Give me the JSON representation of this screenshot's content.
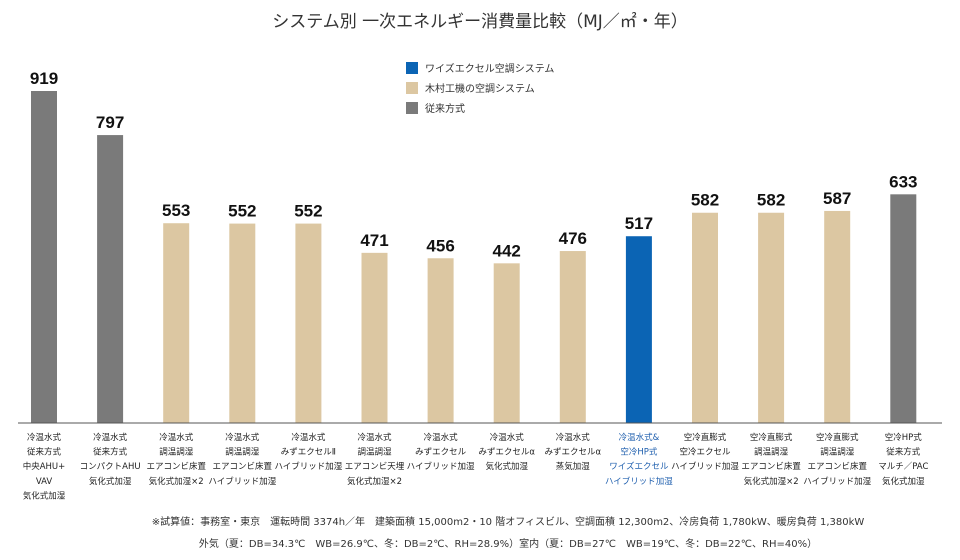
{
  "chart_data": {
    "type": "bar",
    "title": "システム別 一次エネルギー消費量比較（MJ／㎡・年）",
    "legend": {
      "placement": "top-center",
      "items": [
        {
          "name": "ワイズエクセル空調システム",
          "color": "#0b64b4"
        },
        {
          "name": "木村工機の空調システム",
          "color": "#dcc7a2"
        },
        {
          "name": "従来方式",
          "color": "#7a7a7a"
        }
      ]
    },
    "ylim": [
      0,
      1000
    ],
    "grid": false,
    "categories": [
      [
        "冷温水式",
        "従来方式",
        "中央AHU+",
        "VAV",
        "気化式加湿"
      ],
      [
        "冷温水式",
        "従来方式",
        "コンパクトAHU",
        "気化式加湿"
      ],
      [
        "冷温水式",
        "調温調湿",
        "エアコンビ床置",
        "気化式加湿×2"
      ],
      [
        "冷温水式",
        "調温調湿",
        "エアコンビ床置",
        "ハイブリッド加湿"
      ],
      [
        "冷温水式",
        "みずエクセルⅡ",
        "ハイブリッド加湿"
      ],
      [
        "冷温水式",
        "調温調湿",
        "エアコンビ天埋",
        "気化式加湿×2"
      ],
      [
        "冷温水式",
        "みずエクセル",
        "ハイブリッド加湿"
      ],
      [
        "冷温水式",
        "みずエクセルα",
        "気化式加湿"
      ],
      [
        "冷温水式",
        "みずエクセルα",
        "蒸気加湿"
      ],
      [
        "冷温水式&",
        "空冷HP式",
        "ワイズエクセル",
        "ハイブリッド加湿"
      ],
      [
        "空冷直膨式",
        "空冷エクセル",
        "ハイブリッド加湿"
      ],
      [
        "空冷直膨式",
        "調温調湿",
        "エアコンビ床置",
        "気化式加湿×2"
      ],
      [
        "空冷直膨式",
        "調温調湿",
        "エアコンビ床置",
        "ハイブリッド加湿"
      ],
      [
        "空冷HP式",
        "従来方式",
        "マルチ／PAC",
        "気化式加湿"
      ]
    ],
    "values": [
      919,
      797,
      553,
      552,
      552,
      471,
      456,
      442,
      476,
      517,
      582,
      582,
      587,
      633
    ],
    "series_of_bar": [
      "従来方式",
      "従来方式",
      "木村工機の空調システム",
      "木村工機の空調システム",
      "木村工機の空調システム",
      "木村工機の空調システム",
      "木村工機の空調システム",
      "木村工機の空調システム",
      "木村工機の空調システム",
      "ワイズエクセル空調システム",
      "木村工機の空調システム",
      "木村工機の空調システム",
      "木村工機の空調システム",
      "従来方式"
    ]
  },
  "notes": [
    "※試算値：事務室・東京　運転時間 3374h／年　建築面積 15,000m2・10 階オフィスビル、空調面積 12,300m2、冷房負荷 1,780kW、暖房負荷 1,380kW",
    "外気（夏：DB=34.3℃　WB=26.9℃、冬：DB=2℃、RH=28.9%）室内（夏：DB=27℃　WB=19℃、冬：DB=22℃、RH=40%）"
  ]
}
